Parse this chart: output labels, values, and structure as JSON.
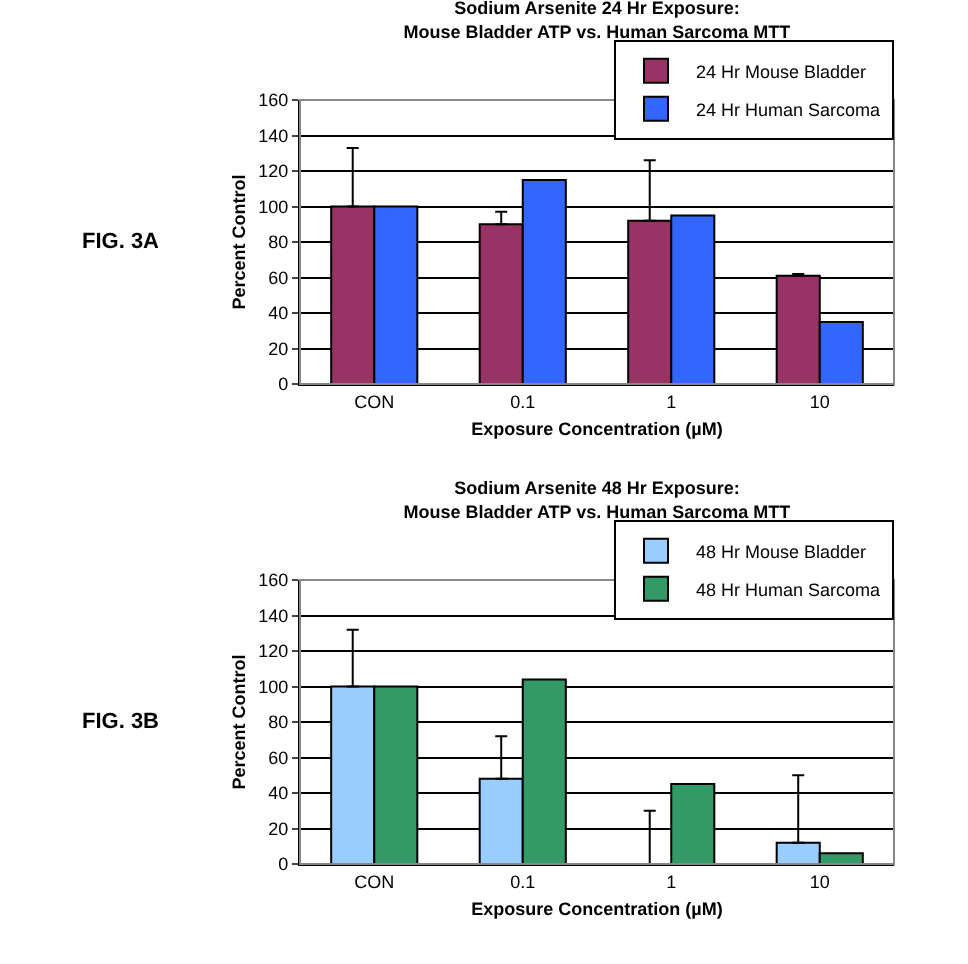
{
  "chart_data": [
    {
      "type": "bar",
      "title": "Sodium Arsenite 24 Hr Exposure:\nMouse Bladder ATP vs. Human Sarcoma MTT",
      "xlabel": "Exposure Concentration (µM)",
      "ylabel": "Percent Control",
      "annotations": [
        "FIG. 3A"
      ],
      "categories": [
        "CON",
        "0.1",
        "1",
        "10"
      ],
      "series": [
        {
          "name": "24 Hr Mouse Bladder",
          "color": "#993366",
          "values": [
            100,
            90,
            92,
            61
          ],
          "errors": [
            [
              100,
              133
            ],
            [
              90,
              97
            ],
            [
              92,
              126
            ],
            [
              61,
              62
            ]
          ]
        },
        {
          "name": "24 Hr Human Sarcoma",
          "color": "#3366ff",
          "values": [
            100,
            115,
            95,
            35
          ]
        }
      ],
      "ylim": [
        0,
        160
      ],
      "yticks": [
        0,
        20,
        40,
        60,
        80,
        100,
        120,
        140,
        160
      ],
      "grid": "y",
      "legend": "top right"
    },
    {
      "type": "bar",
      "title": "Sodium Arsenite 48 Hr Exposure:\nMouse Bladder ATP vs. Human Sarcoma MTT",
      "xlabel": "Exposure Concentration (µM)",
      "ylabel": "Percent Control",
      "annotations": [
        "FIG. 3B"
      ],
      "categories": [
        "CON",
        "0.1",
        "1",
        "10"
      ],
      "series": [
        {
          "name": "48 Hr Mouse Bladder",
          "color": "#99ccff",
          "values": [
            100,
            48,
            0,
            12
          ],
          "errors": [
            [
              100,
              132
            ],
            [
              48,
              72
            ],
            [
              0,
              30
            ],
            [
              12,
              50
            ]
          ]
        },
        {
          "name": "48 Hr Human Sarcoma",
          "color": "#339966",
          "values": [
            100,
            104,
            45,
            6
          ]
        }
      ],
      "ylim": [
        0,
        160
      ],
      "yticks": [
        0,
        20,
        40,
        60,
        80,
        100,
        120,
        140,
        160
      ],
      "grid": "y",
      "legend": "top right"
    }
  ]
}
